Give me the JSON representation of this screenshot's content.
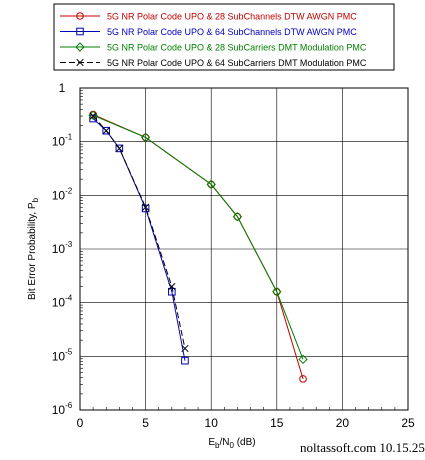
{
  "chart_data": {
    "type": "line",
    "title": "",
    "xlabel": "Eb/N0 (dB)",
    "xlabel_main": "E",
    "xlabel_sub1": "b",
    "xlabel_mid": "/N",
    "xlabel_sub2": "0",
    "xlabel_unit": " (dB)",
    "ylabel": "Bit Error Probability, Pb",
    "ylabel_main": "Bit Error Probability, P",
    "ylabel_sub": "b",
    "xlim": [
      0,
      25
    ],
    "ylim": [
      1e-06,
      1
    ],
    "yscale": "log",
    "grid": true,
    "legend_position": "top",
    "xticks": [
      0,
      5,
      10,
      15,
      20,
      25
    ],
    "xtick_labels": [
      "0",
      "5",
      "10",
      "15",
      "20",
      "25"
    ],
    "yticks": [
      {
        "value": 1,
        "base": "1",
        "exp": ""
      },
      {
        "value": 0.1,
        "base": "10",
        "exp": "-1"
      },
      {
        "value": 0.01,
        "base": "10",
        "exp": "-2"
      },
      {
        "value": 0.001,
        "base": "10",
        "exp": "-3"
      },
      {
        "value": 0.0001,
        "base": "10",
        "exp": "-4"
      },
      {
        "value": 1e-05,
        "base": "10",
        "exp": "-5"
      },
      {
        "value": 1e-06,
        "base": "10",
        "exp": "-6"
      }
    ],
    "series": [
      {
        "name": "5G NR Polar Code UPO & 28 SubChannels DTW AWGN PMC",
        "color": "#c00000",
        "marker": "circle",
        "dash": "solid",
        "x": [
          1,
          5,
          10,
          12,
          15,
          17
        ],
        "y": [
          0.32,
          0.12,
          0.016,
          0.004,
          0.00016,
          3.8e-06
        ]
      },
      {
        "name": "5G NR Polar Code UPO & 64 SubChannels DTW AWGN PMC",
        "color": "#0000c0",
        "marker": "square",
        "dash": "solid",
        "x": [
          1,
          2,
          3,
          5,
          7,
          8
        ],
        "y": [
          0.27,
          0.16,
          0.075,
          0.0057,
          0.00016,
          8.3e-06
        ]
      },
      {
        "name": "5G NR Polar Code UPO & 28 SubCarriers DMT Modulation PMC",
        "color": "#008000",
        "marker": "diamond",
        "dash": "solid",
        "x": [
          1,
          5,
          10,
          12,
          15,
          17
        ],
        "y": [
          0.31,
          0.12,
          0.016,
          0.004,
          0.00016,
          8.8e-06
        ]
      },
      {
        "name": "5G NR Polar Code UPO & 64 SubCarriers DMT Modulation PMC",
        "color": "#000000",
        "marker": "x",
        "dash": "dashed",
        "x": [
          1,
          2,
          3,
          5,
          7,
          8
        ],
        "y": [
          0.3,
          0.16,
          0.075,
          0.006,
          0.0002,
          1.4e-05
        ]
      }
    ]
  },
  "watermark": "noltassoft.com 10.15.25"
}
